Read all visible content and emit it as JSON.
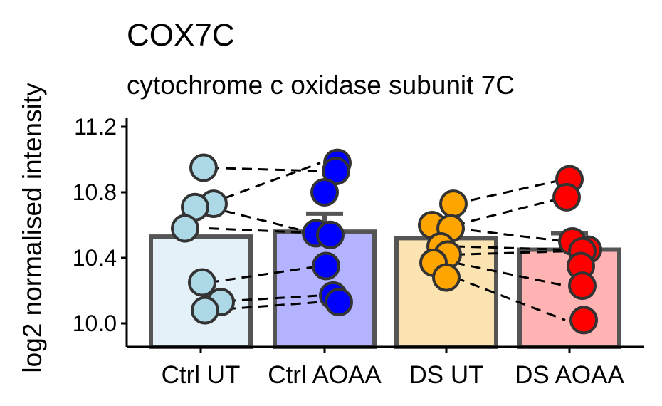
{
  "chart_data": {
    "type": "bar",
    "title": "COX7C",
    "subtitle": "cytochrome c oxidase subunit 7C",
    "xlabel": "",
    "ylabel": "log2 normalised intensity",
    "ylim": [
      9.85,
      11.25
    ],
    "yticks": [
      "10.0",
      "10.4",
      "10.8",
      "11.2"
    ],
    "categories": [
      "Ctrl UT",
      "Ctrl AOAA",
      "DS UT",
      "DS AOAA"
    ],
    "values": [
      10.53,
      10.56,
      10.52,
      10.45
    ],
    "error_upper": [
      null,
      10.67,
      null,
      10.55
    ],
    "bar_fill_colors": [
      "#e5f1f8",
      "#b3b3ff",
      "#fce3b2",
      "#ffb3b3"
    ],
    "point_colors": [
      "#add8e6",
      "#0000ff",
      "#ffa500",
      "#ff0000"
    ],
    "points": [
      [
        10.95,
        10.73,
        10.71,
        10.58,
        10.25,
        10.13,
        10.08
      ],
      [
        10.98,
        10.93,
        10.8,
        10.55,
        10.54,
        10.35,
        10.17,
        10.13
      ],
      [
        10.73,
        10.6,
        10.58,
        10.47,
        10.42,
        10.37,
        10.28
      ],
      [
        10.88,
        10.77,
        10.5,
        10.45,
        10.44,
        10.35,
        10.23,
        10.02
      ]
    ],
    "pairs": [
      [
        10.95,
        10.93
      ],
      [
        10.73,
        10.98
      ],
      [
        10.71,
        10.54
      ],
      [
        10.58,
        10.55
      ],
      [
        10.25,
        10.35
      ],
      [
        10.13,
        10.17
      ],
      [
        10.08,
        10.13
      ],
      [
        10.73,
        10.88
      ],
      [
        10.6,
        10.77
      ],
      [
        10.58,
        10.5
      ],
      [
        10.47,
        10.45
      ],
      [
        10.42,
        10.44
      ],
      [
        10.37,
        10.23
      ],
      [
        10.28,
        10.02
      ]
    ]
  }
}
